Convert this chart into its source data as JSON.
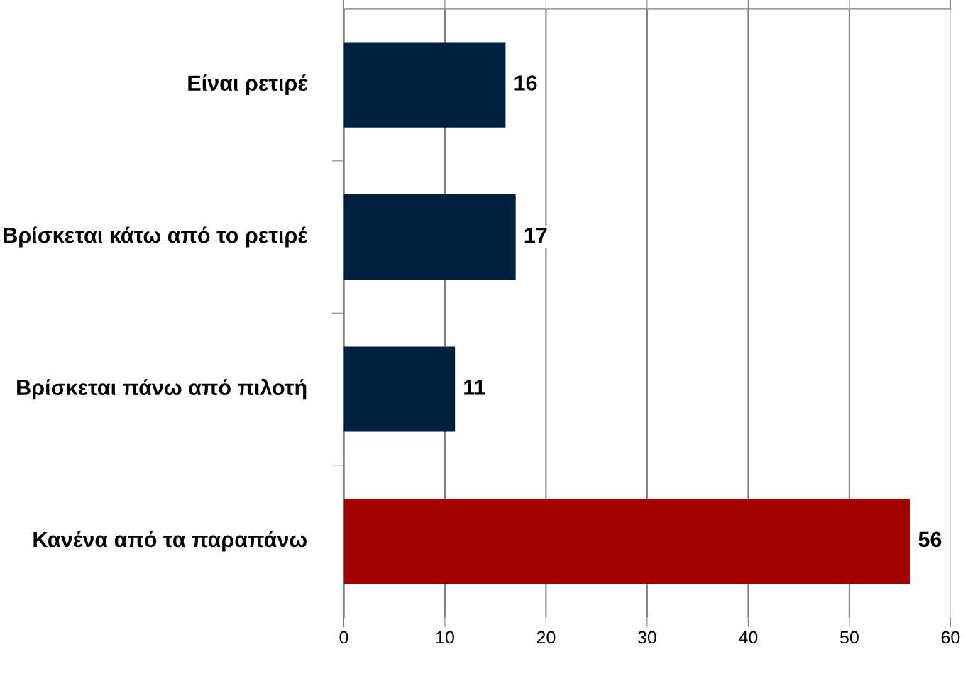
{
  "chart_data": {
    "type": "bar",
    "orientation": "horizontal",
    "categories": [
      "Είναι ρετιρέ",
      "Βρίσκεται κάτω από το ρετιρέ",
      "Βρίσκεται πάνω από πιλοτή",
      "Κανένα από τα παραπάνω"
    ],
    "values": [
      16,
      17,
      11,
      56
    ],
    "colors": [
      "#002040",
      "#002040",
      "#002040",
      "#a50000"
    ],
    "xlim": [
      0,
      60
    ],
    "xticks": [
      0,
      10,
      20,
      30,
      40,
      50,
      60
    ],
    "grid": "x",
    "data_labels": true
  }
}
